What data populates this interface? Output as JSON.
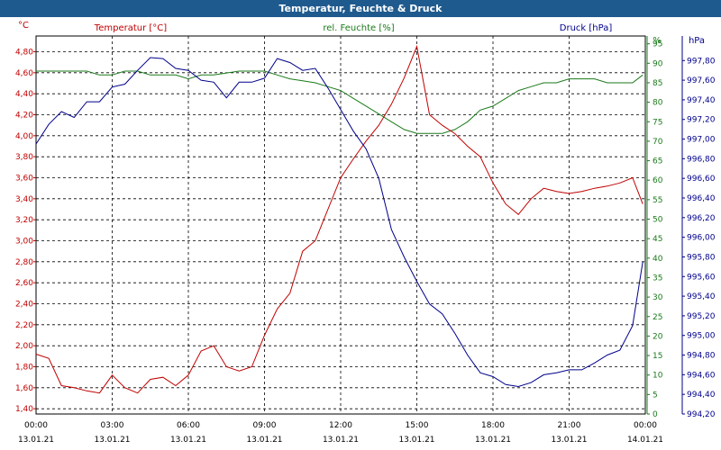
{
  "window_title": "Temperatur, Feuchte & Druck",
  "colors": {
    "title_bg": "#1f5a8e",
    "temperature": "#c00000",
    "humidity": "#1a7a1a",
    "pressure": "#00008b",
    "grid": "#000000"
  },
  "chart_data": {
    "type": "line",
    "legend": {
      "temperature": "Temperatur [°C]",
      "humidity": "rel. Feuchte [%]",
      "pressure": "Druck [hPa]"
    },
    "axes": {
      "left_unit": "°C",
      "right1_unit": "%",
      "right2_unit": "hPa",
      "temperature_range": [
        1.35,
        4.95
      ],
      "humidity_range": [
        0,
        97
      ],
      "pressure_range": [
        994.2,
        998.05
      ],
      "temperature_ticks": [
        "4,80",
        "4,60",
        "4,40",
        "4,20",
        "4,00",
        "3,80",
        "3,60",
        "3,40",
        "3,20",
        "3,00",
        "2,80",
        "2,60",
        "2,40",
        "2,20",
        "2,00",
        "1,80",
        "1,60",
        "1,40"
      ],
      "humidity_ticks": [
        "95",
        "90",
        "85",
        "80",
        "75",
        "70",
        "65",
        "60",
        "55",
        "50",
        "45",
        "40",
        "35",
        "30",
        "25",
        "20",
        "15",
        "10",
        "5",
        "0"
      ],
      "pressure_ticks": [
        "997,80",
        "997,60",
        "997,40",
        "997,20",
        "997,00",
        "996,80",
        "996,60",
        "996,40",
        "996,20",
        "996,00",
        "995,80",
        "995,60",
        "995,40",
        "995,20",
        "995,00",
        "994,80",
        "994,60",
        "994,40",
        "994,20"
      ],
      "x_ticks": [
        {
          "time": "00:00",
          "date": "13.01.21"
        },
        {
          "time": "03:00",
          "date": "13.01.21"
        },
        {
          "time": "06:00",
          "date": "13.01.21"
        },
        {
          "time": "09:00",
          "date": "13.01.21"
        },
        {
          "time": "12:00",
          "date": "13.01.21"
        },
        {
          "time": "15:00",
          "date": "13.01.21"
        },
        {
          "time": "18:00",
          "date": "13.01.21"
        },
        {
          "time": "21:00",
          "date": "13.01.21"
        },
        {
          "time": "00:00",
          "date": "14.01.21"
        }
      ]
    },
    "x_hours": [
      0,
      0.5,
      1,
      1.5,
      2,
      2.5,
      3,
      3.5,
      4,
      4.5,
      5,
      5.5,
      6,
      6.5,
      7,
      7.5,
      8,
      8.5,
      9,
      9.5,
      10,
      10.5,
      11,
      11.5,
      12,
      12.5,
      13,
      13.5,
      14,
      14.5,
      15,
      15.5,
      16,
      16.5,
      17,
      17.5,
      18,
      18.5,
      19,
      19.5,
      20,
      20.5,
      21,
      21.5,
      22,
      22.5,
      23,
      23.5,
      23.9
    ],
    "series": [
      {
        "key": "temperature",
        "name": "Temperatur [°C]",
        "values": [
          1.92,
          1.88,
          1.62,
          1.6,
          1.57,
          1.55,
          1.72,
          1.6,
          1.55,
          1.68,
          1.7,
          1.62,
          1.72,
          1.95,
          2.0,
          1.8,
          1.76,
          1.8,
          2.1,
          2.35,
          2.5,
          2.9,
          3.0,
          3.3,
          3.6,
          3.78,
          3.95,
          4.1,
          4.3,
          4.55,
          4.85,
          4.2,
          4.1,
          4.02,
          3.9,
          3.8,
          3.55,
          3.35,
          3.25,
          3.4,
          3.5,
          3.47,
          3.45,
          3.47,
          3.5,
          3.52,
          3.55,
          3.6,
          3.35
        ]
      },
      {
        "key": "humidity",
        "name": "rel. Feuchte [%]",
        "values": [
          88,
          88,
          88,
          88,
          88,
          87,
          87,
          88,
          88,
          87,
          87,
          87,
          86,
          87,
          87,
          87.5,
          88,
          88,
          88,
          87,
          86,
          85.5,
          85,
          84,
          83,
          81,
          79,
          77,
          75,
          73,
          72,
          72,
          72,
          73,
          75,
          78,
          79,
          81,
          83,
          84,
          85,
          85,
          86,
          86,
          86,
          85,
          85,
          85,
          87
        ]
      },
      {
        "key": "pressure",
        "name": "Druck [hPa]",
        "values": [
          996.95,
          997.15,
          997.28,
          997.22,
          997.38,
          997.38,
          997.53,
          997.56,
          997.7,
          997.83,
          997.82,
          997.72,
          997.7,
          997.6,
          997.58,
          997.42,
          997.58,
          997.58,
          997.62,
          997.82,
          997.78,
          997.7,
          997.72,
          997.52,
          997.3,
          997.08,
          996.9,
          996.6,
          996.08,
          995.8,
          995.55,
          995.32,
          995.22,
          995.02,
          994.8,
          994.62,
          994.58,
          994.5,
          994.48,
          994.52,
          994.6,
          994.62,
          994.65,
          994.65,
          994.72,
          994.8,
          994.85,
          995.1,
          995.75
        ]
      }
    ]
  }
}
